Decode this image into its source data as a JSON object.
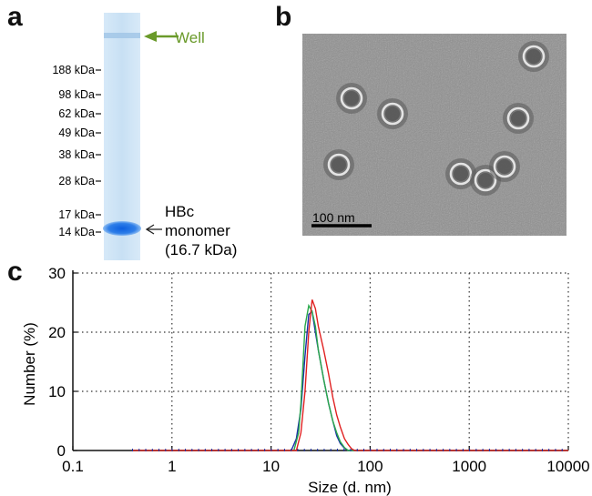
{
  "panels": {
    "a": "a",
    "b": "b",
    "c": "c"
  },
  "gel": {
    "well_label": "Well",
    "markers": [
      "188 kDa",
      "98 kDa",
      "62 kDa",
      "49 kDa",
      "38 kDa",
      "28 kDa",
      "17 kDa",
      "14 kDa"
    ],
    "band_label_lines": [
      "HBc",
      "monomer",
      "(16.7 kDa)"
    ],
    "well_color": "#6a9a2a",
    "band_color": "#1f70e0"
  },
  "tem": {
    "scale_bar_label": "100 nm"
  },
  "chart_data": {
    "type": "line",
    "xlabel": "Size (d. nm)",
    "ylabel": "Number (%)",
    "xscale": "log",
    "xlim": [
      0.1,
      10000
    ],
    "ylim": [
      0,
      30
    ],
    "xticks": [
      "0.1",
      "1",
      "10",
      "100",
      "1000",
      "10000"
    ],
    "yticks": [
      "0",
      "10",
      "20",
      "30"
    ],
    "grid": true,
    "series": [
      {
        "color": "#1a2ea8",
        "x": [
          0.4,
          10,
          16,
          18,
          20,
          22,
          24,
          26,
          28,
          30,
          34,
          38,
          42,
          46,
          50,
          55,
          60,
          70,
          100,
          10000
        ],
        "y": [
          0,
          0,
          0,
          2,
          7,
          16,
          23,
          23.5,
          20,
          17,
          12,
          8,
          5,
          2.5,
          1.2,
          0.4,
          0,
          0,
          0,
          0
        ]
      },
      {
        "color": "#2aa84a",
        "x": [
          0.4,
          10,
          17,
          19,
          20,
          22,
          24,
          26,
          28,
          30,
          34,
          38,
          42,
          46,
          50,
          55,
          60,
          70,
          100,
          10000
        ],
        "y": [
          0,
          0,
          0,
          3,
          8,
          21,
          24.5,
          23.5,
          21,
          17,
          12,
          8,
          5,
          3,
          1.5,
          0.5,
          0,
          0,
          0,
          0
        ]
      },
      {
        "color": "#e02020",
        "x": [
          0.4,
          10,
          18,
          20,
          22,
          24,
          26,
          28,
          30,
          34,
          38,
          42,
          46,
          50,
          55,
          60,
          65,
          70,
          100,
          10000
        ],
        "y": [
          0,
          0,
          0,
          3,
          10,
          20,
          25.5,
          24,
          21,
          17,
          13,
          9,
          6,
          4,
          2,
          1,
          0.3,
          0,
          0,
          0
        ]
      }
    ]
  }
}
